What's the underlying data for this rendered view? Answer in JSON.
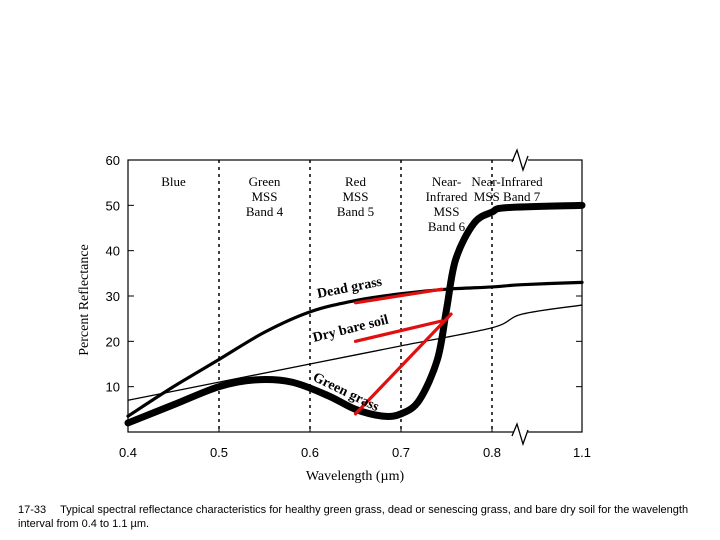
{
  "chart_data": {
    "type": "line",
    "xlabel": "Wavelength (µm)",
    "ylabel": "Percent Reflectance",
    "xlim": [
      0.4,
      1.1
    ],
    "ylim": [
      0,
      60
    ],
    "x_ticks": [
      "0.4",
      "0.5",
      "0.6",
      "0.7",
      "0.8",
      "1.1"
    ],
    "y_ticks": [
      "10",
      "20",
      "30",
      "40",
      "50",
      "60"
    ],
    "x_tick_values": [
      0.4,
      0.5,
      0.6,
      0.7,
      0.8,
      1.1
    ],
    "y_tick_values": [
      10,
      20,
      30,
      40,
      50,
      60
    ],
    "axis_break_at": 0.9,
    "band_boundaries": [
      0.5,
      0.6,
      0.7,
      0.8
    ],
    "bands": [
      {
        "lines": [
          "Blue"
        ],
        "x_center": 0.45
      },
      {
        "lines": [
          "Green",
          "MSS",
          "Band 4"
        ],
        "x_center": 0.55
      },
      {
        "lines": [
          "Red",
          "MSS",
          "Band 5"
        ],
        "x_center": 0.65
      },
      {
        "lines": [
          "Near-",
          "Infrared",
          "MSS",
          "Band 6"
        ],
        "x_center": 0.75
      },
      {
        "lines": [
          "Near-Infrared",
          "MSS Band 7"
        ],
        "x_center": 0.85
      }
    ],
    "series": [
      {
        "name": "Green grass",
        "style": "thick",
        "x": [
          0.4,
          0.45,
          0.5,
          0.54,
          0.58,
          0.62,
          0.65,
          0.68,
          0.7,
          0.72,
          0.74,
          0.75,
          0.76,
          0.78,
          0.8,
          0.85,
          1.1
        ],
        "y": [
          2,
          6,
          10,
          11.5,
          11,
          8,
          5,
          3.5,
          4,
          7,
          16,
          27,
          38,
          46,
          48.5,
          49.5,
          50
        ]
      },
      {
        "name": "Dead grass",
        "style": "medium",
        "x": [
          0.4,
          0.45,
          0.5,
          0.55,
          0.6,
          0.65,
          0.7,
          0.75,
          0.8,
          0.9,
          1.1
        ],
        "y": [
          3.5,
          10,
          16,
          22,
          26.5,
          29,
          30.5,
          31.5,
          32,
          32.5,
          33
        ]
      },
      {
        "name": "Dry bare soil",
        "style": "thin",
        "x": [
          0.4,
          0.5,
          0.6,
          0.7,
          0.8,
          0.9,
          1.1
        ],
        "y": [
          7,
          11,
          15,
          19,
          23,
          26,
          28
        ]
      }
    ],
    "annotation_lines": [
      {
        "from": [
          0.65,
          28.5
        ],
        "to": [
          0.745,
          31.5
        ]
      },
      {
        "from": [
          0.65,
          20
        ],
        "to": [
          0.745,
          24.5
        ]
      },
      {
        "from": [
          0.65,
          4
        ],
        "to": [
          0.755,
          26
        ]
      }
    ],
    "colors": {
      "curve": "#000000",
      "highlight": "#e01010"
    }
  },
  "figure": {
    "number": "17-33",
    "caption": "Typical spectral reflectance characteristics for healthy green grass, dead or senescing grass, and bare dry soil for the wavelength interval from 0.4 to 1.1 µm."
  }
}
